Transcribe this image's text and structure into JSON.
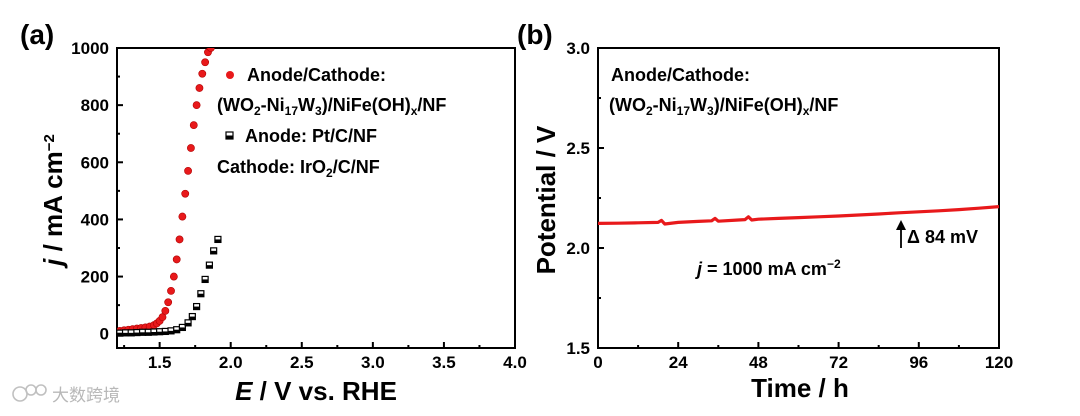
{
  "chart_data": [
    {
      "panel_label": "(a)",
      "type": "scatter",
      "xlabel_italic": "E",
      "xlabel_rest": " / V vs. RHE",
      "ylabel_italic": "j",
      "ylabel_rest": " / mA cm",
      "ylabel_sup": "−2",
      "xlim": [
        1.2,
        4.0
      ],
      "ylim": [
        -50,
        1000
      ],
      "xticks": [
        "1.5",
        "2.0",
        "2.5",
        "3.0",
        "3.5",
        "4.0"
      ],
      "yticks": [
        "0",
        "200",
        "400",
        "600",
        "800",
        "1000"
      ],
      "legend": [
        {
          "marker": "filled-circle",
          "color": "#e8191b",
          "lines": [
            [
              "Anode/Cathode:"
            ],
            [
              "(WO",
              {
                "sub": "2"
              },
              "-Ni",
              {
                "sub": "17"
              },
              "W",
              {
                "sub": "3"
              },
              ")/NiFe(OH)",
              {
                "sub": "x"
              },
              "/NF"
            ]
          ]
        },
        {
          "marker": "half-filled-square",
          "color": "#000000",
          "lines": [
            [
              "Anode: Pt/C/NF"
            ],
            [
              "Cathode: IrO",
              {
                "sub": "2"
              },
              "/C/NF"
            ]
          ]
        }
      ],
      "series": [
        {
          "name": "(WO2-Ni17W3)/NiFe(OH)x/NF",
          "marker": "circle",
          "color": "#e8191b",
          "x": [
            1.22,
            1.25,
            1.28,
            1.31,
            1.34,
            1.37,
            1.4,
            1.43,
            1.46,
            1.48,
            1.5,
            1.52,
            1.54,
            1.56,
            1.58,
            1.6,
            1.62,
            1.64,
            1.66,
            1.68,
            1.7,
            1.72,
            1.74,
            1.76,
            1.78,
            1.8,
            1.82,
            1.84,
            1.86
          ],
          "y": [
            10,
            12,
            14,
            16,
            18,
            20,
            22,
            25,
            30,
            36,
            45,
            58,
            80,
            110,
            150,
            200,
            260,
            330,
            410,
            490,
            570,
            650,
            730,
            800,
            860,
            910,
            950,
            985,
            1000
          ]
        },
        {
          "name": "Pt/C/NF || IrO2/C/NF",
          "marker": "square",
          "color": "#000000",
          "x": [
            1.22,
            1.26,
            1.3,
            1.34,
            1.38,
            1.42,
            1.46,
            1.5,
            1.54,
            1.58,
            1.62,
            1.66,
            1.7,
            1.73,
            1.76,
            1.79,
            1.82,
            1.85,
            1.88,
            1.91
          ],
          "y": [
            2,
            3,
            3,
            4,
            5,
            5,
            6,
            7,
            8,
            10,
            14,
            22,
            38,
            60,
            95,
            140,
            190,
            240,
            290,
            330
          ]
        }
      ]
    },
    {
      "panel_label": "(b)",
      "type": "line",
      "xlabel": "Time / h",
      "ylabel": "Potential / V",
      "xlim": [
        0,
        120
      ],
      "ylim": [
        1.5,
        3.0
      ],
      "xticks": [
        "0",
        "24",
        "48",
        "72",
        "96",
        "120"
      ],
      "yticks": [
        "1.5",
        "2.0",
        "2.5",
        "3.0"
      ],
      "annotation_lines": [
        [
          "Anode/Cathode:"
        ],
        [
          "(WO",
          {
            "sub": "2"
          },
          "-Ni",
          {
            "sub": "17"
          },
          "W",
          {
            "sub": "3"
          },
          ")/NiFe(OH)",
          {
            "sub": "x"
          },
          "/NF"
        ]
      ],
      "current_label_italic": "j",
      "current_label_rest": " = 1000 mA cm",
      "current_label_sup": "−2",
      "delta_label": "Δ 84 mV",
      "series": [
        {
          "name": "potential",
          "color": "#e8191b",
          "x": [
            0,
            6,
            12,
            18,
            19,
            20,
            24,
            30,
            34,
            35,
            36,
            42,
            44,
            45,
            46,
            48,
            54,
            60,
            66,
            72,
            78,
            84,
            90,
            96,
            102,
            108,
            114,
            120
          ],
          "y": [
            2.123,
            2.124,
            2.126,
            2.128,
            2.138,
            2.12,
            2.128,
            2.133,
            2.136,
            2.148,
            2.134,
            2.14,
            2.142,
            2.156,
            2.14,
            2.144,
            2.148,
            2.152,
            2.156,
            2.16,
            2.165,
            2.17,
            2.176,
            2.181,
            2.186,
            2.192,
            2.199,
            2.207
          ]
        }
      ]
    }
  ],
  "watermark": "大数跨境"
}
